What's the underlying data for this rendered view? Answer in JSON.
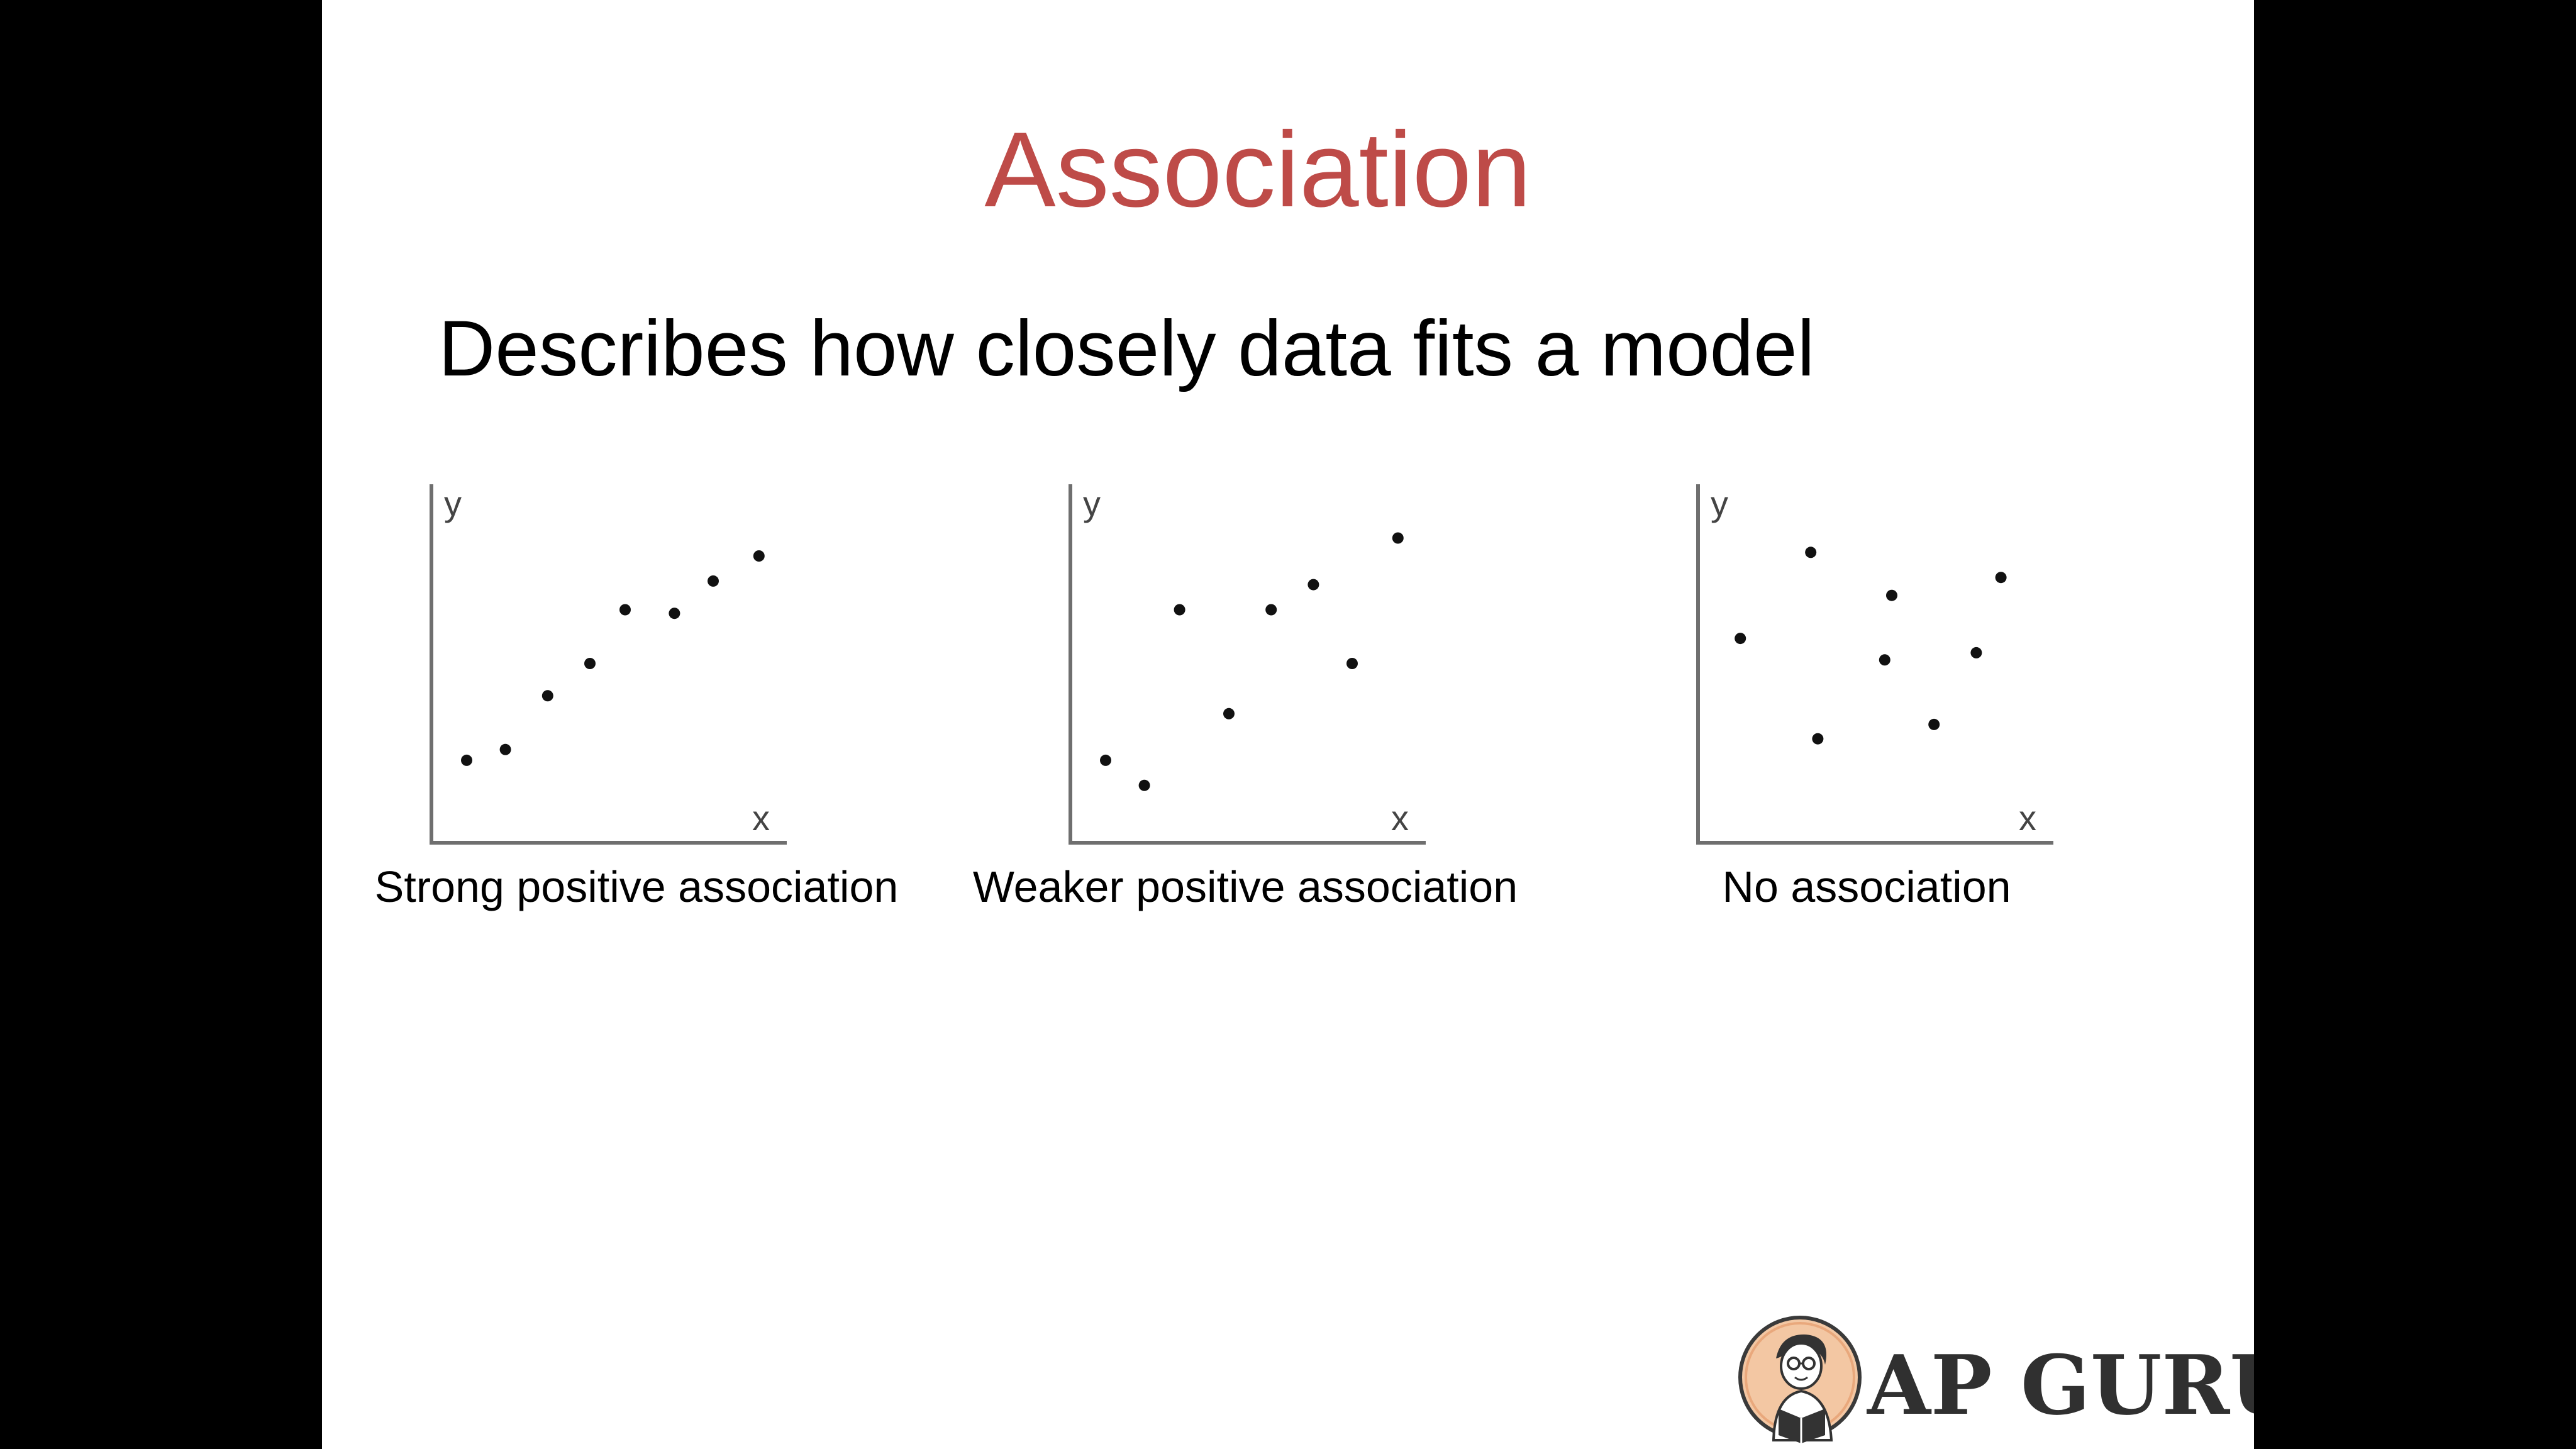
{
  "slide": {
    "title": "Association",
    "subtitle": "Describes how closely data fits a model",
    "logo_text": "AP GURU"
  },
  "chart_data": [
    {
      "type": "scatter",
      "title": "",
      "caption": "Strong positive association",
      "xlabel": "x",
      "ylabel": "y",
      "xlim": [
        0,
        10
      ],
      "ylim": [
        0,
        10
      ],
      "grid": false,
      "points": [
        [
          1.0,
          2.3
        ],
        [
          2.1,
          2.6
        ],
        [
          3.3,
          4.1
        ],
        [
          4.5,
          5.0
        ],
        [
          5.5,
          6.5
        ],
        [
          6.9,
          6.4
        ],
        [
          8.0,
          7.3
        ],
        [
          9.3,
          8.0
        ]
      ]
    },
    {
      "type": "scatter",
      "title": "",
      "caption": "Weaker positive association",
      "xlabel": "x",
      "ylabel": "y",
      "xlim": [
        0,
        10
      ],
      "ylim": [
        0,
        10
      ],
      "grid": false,
      "points": [
        [
          1.0,
          2.3
        ],
        [
          2.1,
          1.6
        ],
        [
          3.1,
          6.5
        ],
        [
          4.5,
          3.6
        ],
        [
          5.7,
          6.5
        ],
        [
          6.9,
          7.2
        ],
        [
          8.0,
          5.0
        ],
        [
          9.3,
          8.5
        ]
      ]
    },
    {
      "type": "scatter",
      "title": "",
      "caption": "No association",
      "xlabel": "x",
      "ylabel": "y",
      "xlim": [
        0,
        10
      ],
      "ylim": [
        0,
        10
      ],
      "grid": false,
      "points": [
        [
          1.2,
          5.7
        ],
        [
          3.2,
          8.1
        ],
        [
          3.4,
          2.9
        ],
        [
          5.3,
          5.1
        ],
        [
          5.5,
          6.9
        ],
        [
          6.7,
          3.3
        ],
        [
          7.9,
          5.3
        ],
        [
          8.6,
          7.4
        ]
      ]
    }
  ]
}
